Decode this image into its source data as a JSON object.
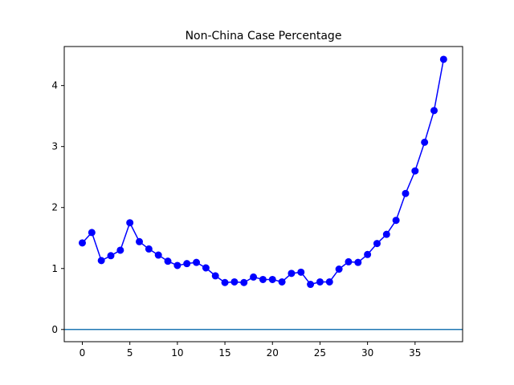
{
  "chart_data": {
    "type": "line",
    "title": "Non-China Case Percentage",
    "xlabel": "",
    "ylabel": "",
    "xlim": [
      -1.9,
      40.0
    ],
    "ylim": [
      -0.2,
      4.64
    ],
    "xticks": [
      0,
      5,
      10,
      15,
      20,
      25,
      30,
      35
    ],
    "yticks": [
      0,
      1,
      2,
      3,
      4
    ],
    "grid": false,
    "legend": "none",
    "series": [
      {
        "color": "#0000ff",
        "marker": "circle",
        "x": [
          0,
          1,
          2,
          3,
          4,
          5,
          6,
          7,
          8,
          9,
          10,
          11,
          12,
          13,
          14,
          15,
          16,
          17,
          18,
          19,
          20,
          21,
          22,
          23,
          24,
          25,
          26,
          27,
          28,
          29,
          30,
          31,
          32,
          33,
          34,
          35,
          36,
          37,
          38
        ],
        "values": [
          1.42,
          1.59,
          1.13,
          1.21,
          1.3,
          1.75,
          1.44,
          1.32,
          1.22,
          1.12,
          1.05,
          1.08,
          1.1,
          1.01,
          0.88,
          0.77,
          0.78,
          0.77,
          0.86,
          0.82,
          0.82,
          0.78,
          0.92,
          0.94,
          0.74,
          0.78,
          0.78,
          0.99,
          1.11,
          1.1,
          1.23,
          1.41,
          1.56,
          1.79,
          2.23,
          2.6,
          3.07,
          3.59,
          4.43
        ]
      }
    ],
    "hlines": [
      {
        "y": 0,
        "color": "#1f77b4"
      }
    ]
  }
}
